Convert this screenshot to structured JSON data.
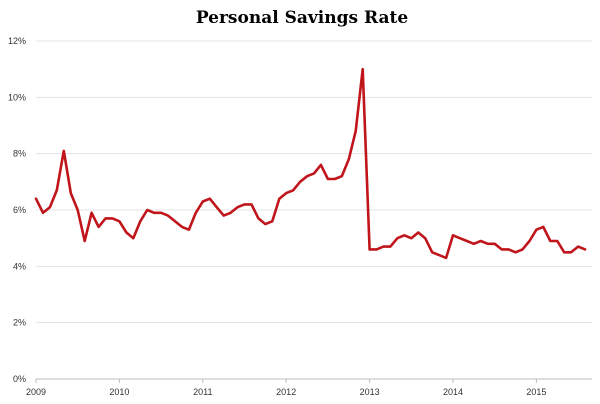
{
  "chart_data": {
    "type": "line",
    "title": "Personal Savings Rate",
    "xlabel": "",
    "ylabel": "",
    "ylim": [
      0,
      12
    ],
    "y_ticks": [
      {
        "value": 0,
        "label": "0%"
      },
      {
        "value": 2,
        "label": "2%"
      },
      {
        "value": 4,
        "label": "4%"
      },
      {
        "value": 6,
        "label": "6%"
      },
      {
        "value": 8,
        "label": "8%"
      },
      {
        "value": 10,
        "label": "10%"
      },
      {
        "value": 12,
        "label": "12%"
      }
    ],
    "x_ticks": [
      {
        "value": "2009-01",
        "label": "2009"
      },
      {
        "value": "2010-01",
        "label": "2010"
      },
      {
        "value": "2011-01",
        "label": "2011"
      },
      {
        "value": "2012-01",
        "label": "2012"
      },
      {
        "value": "2013-01",
        "label": "2013"
      },
      {
        "value": "2014-01",
        "label": "2014"
      },
      {
        "value": "2015-01",
        "label": "2015"
      }
    ],
    "xlim": [
      "2009-01",
      "2015-09"
    ],
    "grid": true,
    "legend": "none",
    "color": "#c0151b",
    "series": [
      {
        "x": [
          "2009-01",
          "2009-02",
          "2009-03",
          "2009-04",
          "2009-05",
          "2009-06",
          "2009-07",
          "2009-08",
          "2009-09",
          "2009-10",
          "2009-11",
          "2009-12",
          "2010-01",
          "2010-02",
          "2010-03",
          "2010-04",
          "2010-05",
          "2010-06",
          "2010-07",
          "2010-08",
          "2010-09",
          "2010-10",
          "2010-11",
          "2010-12",
          "2011-01",
          "2011-02",
          "2011-03",
          "2011-04",
          "2011-05",
          "2011-06",
          "2011-07",
          "2011-08",
          "2011-09",
          "2011-10",
          "2011-11",
          "2011-12",
          "2012-01",
          "2012-02",
          "2012-03",
          "2012-04",
          "2012-05",
          "2012-06",
          "2012-07",
          "2012-08",
          "2012-09",
          "2012-10",
          "2012-11",
          "2012-12",
          "2013-01",
          "2013-02",
          "2013-03",
          "2013-04",
          "2013-05",
          "2013-06",
          "2013-07",
          "2013-08",
          "2013-09",
          "2013-10",
          "2013-11",
          "2013-12",
          "2014-01",
          "2014-02",
          "2014-03",
          "2014-04",
          "2014-05",
          "2014-06",
          "2014-07",
          "2014-08",
          "2014-09",
          "2014-10",
          "2014-11",
          "2014-12",
          "2015-01",
          "2015-02",
          "2015-03",
          "2015-04",
          "2015-05",
          "2015-06",
          "2015-07",
          "2015-08"
        ],
        "y": [
          6.4,
          5.9,
          6.1,
          6.7,
          8.1,
          6.6,
          6.0,
          4.9,
          5.9,
          5.4,
          5.7,
          5.7,
          5.6,
          5.2,
          5.0,
          5.6,
          6.0,
          5.9,
          5.9,
          5.8,
          5.6,
          5.4,
          5.3,
          5.9,
          6.3,
          6.4,
          6.1,
          5.8,
          5.9,
          6.1,
          6.2,
          6.2,
          5.7,
          5.5,
          5.6,
          6.4,
          6.6,
          6.7,
          7.0,
          7.2,
          7.3,
          7.6,
          7.1,
          7.1,
          7.2,
          7.8,
          8.8,
          11.0,
          4.6,
          4.6,
          4.7,
          4.7,
          5.0,
          5.1,
          5.0,
          5.2,
          5.0,
          4.5,
          4.4,
          4.3,
          5.1,
          5.0,
          4.9,
          4.8,
          4.9,
          4.8,
          4.8,
          4.6,
          4.6,
          4.5,
          4.6,
          4.9,
          5.3,
          5.4,
          4.9,
          4.9,
          4.5,
          4.5,
          4.7,
          4.6
        ]
      }
    ]
  }
}
